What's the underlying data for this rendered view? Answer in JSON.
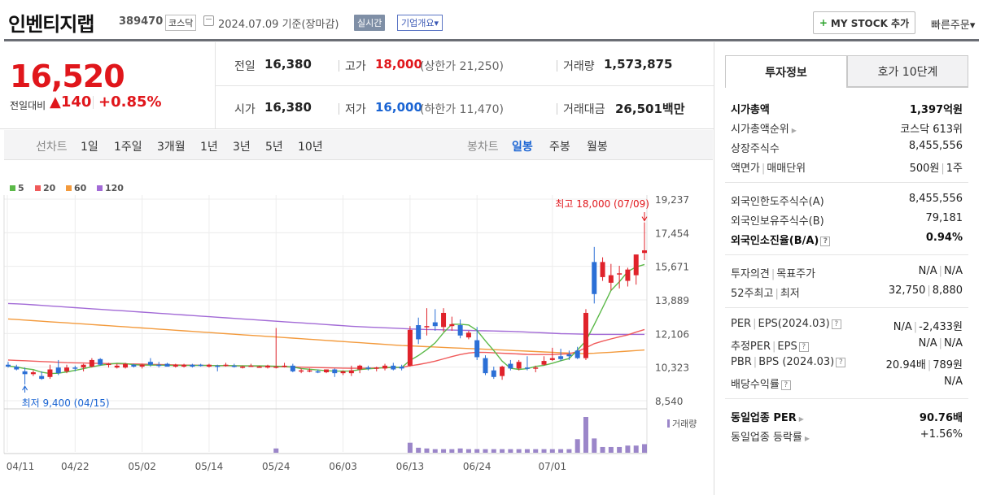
{
  "header": {
    "name": "인벤티지랩",
    "code": "389470",
    "market": "코스닥",
    "date": "2024.07.09 기준(장마감)",
    "realtime": "실시간",
    "overview": "기업개요▾",
    "mystock_label": "MY STOCK 추가",
    "quick_order": "빠른주문▾"
  },
  "price": {
    "current": "16,520",
    "change_label": "전일대비",
    "change": "▲140",
    "change_pct": "+0.85%"
  },
  "summary": {
    "prev_label": "전일",
    "prev": "16,380",
    "high_label": "고가",
    "high": "18,000",
    "upper_limit": "(상한가 21,250)",
    "volume_label": "거래량",
    "volume": "1,573,875",
    "open_label": "시가",
    "open": "16,380",
    "low_label": "저가",
    "low": "16,000",
    "lower_limit": "(하한가 11,470)",
    "amount_label": "거래대금",
    "amount": "26,501",
    "amount_unit": "백만"
  },
  "periods": {
    "line_label": "선차트",
    "line_items": [
      "1일",
      "1주일",
      "3개월",
      "1년",
      "3년",
      "5년",
      "10년"
    ],
    "candle_label": "봉차트",
    "candle_items": [
      "일봉",
      "주봉",
      "월봉"
    ]
  },
  "chart_data": {
    "type": "candlestick",
    "legend": [
      {
        "name": "5",
        "color": "#5bb948"
      },
      {
        "name": "20",
        "color": "#f05a5a"
      },
      {
        "name": "60",
        "color": "#f39a3c"
      },
      {
        "name": "120",
        "color": "#a26ad6"
      }
    ],
    "y_ticks": [
      "19,237",
      "17,454",
      "15,671",
      "13,889",
      "12,106",
      "10,323",
      "8,540"
    ],
    "ylim": [
      8540,
      19237
    ],
    "x_ticks": [
      "04/11",
      "04/22",
      "05/02",
      "05/14",
      "05/24",
      "06/03",
      "06/13",
      "06/24",
      "07/01"
    ],
    "max_annotation": "최고 18,000 (07/09)",
    "min_annotation": "최저 9,400 (04/15)",
    "volume_label": "거래량",
    "candles": [
      {
        "o": 10450,
        "h": 10600,
        "l": 10300,
        "c": 10350
      },
      {
        "o": 10350,
        "h": 10450,
        "l": 10150,
        "c": 10200
      },
      {
        "o": 10100,
        "h": 10300,
        "l": 9400,
        "c": 9950
      },
      {
        "o": 9950,
        "h": 10150,
        "l": 9850,
        "c": 10050
      },
      {
        "o": 9850,
        "h": 10100,
        "l": 9650,
        "c": 9700
      },
      {
        "o": 9800,
        "h": 10450,
        "l": 9700,
        "c": 10200
      },
      {
        "o": 10300,
        "h": 10700,
        "l": 9900,
        "c": 10000
      },
      {
        "o": 10100,
        "h": 10450,
        "l": 10000,
        "c": 10300
      },
      {
        "o": 10300,
        "h": 10400,
        "l": 10100,
        "c": 10250
      },
      {
        "o": 10300,
        "h": 10500,
        "l": 10100,
        "c": 10450
      },
      {
        "o": 10350,
        "h": 10800,
        "l": 10300,
        "c": 10700
      },
      {
        "o": 10750,
        "h": 10800,
        "l": 10400,
        "c": 10450
      },
      {
        "o": 10450,
        "h": 10550,
        "l": 10300,
        "c": 10500
      },
      {
        "o": 10300,
        "h": 10500,
        "l": 10250,
        "c": 10400
      },
      {
        "o": 10300,
        "h": 10550,
        "l": 10250,
        "c": 10500
      },
      {
        "o": 10450,
        "h": 10500,
        "l": 10300,
        "c": 10350
      },
      {
        "o": 10350,
        "h": 10500,
        "l": 10250,
        "c": 10450
      },
      {
        "o": 10600,
        "h": 10800,
        "l": 10350,
        "c": 10450
      },
      {
        "o": 10450,
        "h": 10600,
        "l": 10300,
        "c": 10400
      },
      {
        "o": 10500,
        "h": 10550,
        "l": 10350,
        "c": 10350
      },
      {
        "o": 10350,
        "h": 10500,
        "l": 10300,
        "c": 10450
      },
      {
        "o": 10350,
        "h": 10500,
        "l": 10300,
        "c": 10450
      },
      {
        "o": 10450,
        "h": 10500,
        "l": 10300,
        "c": 10350
      },
      {
        "o": 10450,
        "h": 10500,
        "l": 10350,
        "c": 10400
      },
      {
        "o": 10350,
        "h": 10500,
        "l": 10300,
        "c": 10450
      },
      {
        "o": 10400,
        "h": 10450,
        "l": 10100,
        "c": 10350
      },
      {
        "o": 10400,
        "h": 10550,
        "l": 10350,
        "c": 10450
      },
      {
        "o": 10400,
        "h": 10500,
        "l": 10300,
        "c": 10350
      },
      {
        "o": 10350,
        "h": 10400,
        "l": 10250,
        "c": 10350
      },
      {
        "o": 10400,
        "h": 10500,
        "l": 10350,
        "c": 10400
      },
      {
        "o": 10350,
        "h": 10400,
        "l": 10300,
        "c": 10350
      },
      {
        "o": 10300,
        "h": 10450,
        "l": 10250,
        "c": 10400
      },
      {
        "o": 10300,
        "h": 12400,
        "l": 10250,
        "c": 10350
      },
      {
        "o": 10350,
        "h": 10550,
        "l": 10300,
        "c": 10400
      },
      {
        "o": 10400,
        "h": 10500,
        "l": 10050,
        "c": 10100
      },
      {
        "o": 10150,
        "h": 10250,
        "l": 10000,
        "c": 10150
      },
      {
        "o": 10100,
        "h": 10250,
        "l": 10050,
        "c": 10150
      },
      {
        "o": 10100,
        "h": 10200,
        "l": 10000,
        "c": 10050
      },
      {
        "o": 10050,
        "h": 10200,
        "l": 10000,
        "c": 10200
      },
      {
        "o": 10200,
        "h": 10250,
        "l": 9800,
        "c": 10000
      },
      {
        "o": 10000,
        "h": 10150,
        "l": 9900,
        "c": 10100
      },
      {
        "o": 10000,
        "h": 10400,
        "l": 9850,
        "c": 10150
      },
      {
        "o": 10200,
        "h": 10450,
        "l": 10000,
        "c": 10400
      },
      {
        "o": 10300,
        "h": 10400,
        "l": 10150,
        "c": 10250
      },
      {
        "o": 10250,
        "h": 10350,
        "l": 10100,
        "c": 10300
      },
      {
        "o": 10250,
        "h": 10500,
        "l": 10150,
        "c": 10400
      },
      {
        "o": 10400,
        "h": 10550,
        "l": 10150,
        "c": 10200
      },
      {
        "o": 10350,
        "h": 10450,
        "l": 10150,
        "c": 10250
      },
      {
        "o": 10400,
        "h": 12500,
        "l": 10350,
        "c": 12300
      },
      {
        "o": 12550,
        "h": 12950,
        "l": 11550,
        "c": 11800
      },
      {
        "o": 12500,
        "h": 13450,
        "l": 12000,
        "c": 12500
      },
      {
        "o": 12700,
        "h": 13400,
        "l": 12250,
        "c": 12500
      },
      {
        "o": 12450,
        "h": 13450,
        "l": 12200,
        "c": 13200
      },
      {
        "o": 12500,
        "h": 13000,
        "l": 12250,
        "c": 12600
      },
      {
        "o": 12550,
        "h": 12850,
        "l": 11850,
        "c": 12000
      },
      {
        "o": 11900,
        "h": 12250,
        "l": 11800,
        "c": 12150
      },
      {
        "o": 11750,
        "h": 12450,
        "l": 10700,
        "c": 10850
      },
      {
        "o": 10800,
        "h": 10950,
        "l": 9900,
        "c": 10000
      },
      {
        "o": 10150,
        "h": 10350,
        "l": 9700,
        "c": 9800
      },
      {
        "o": 9850,
        "h": 10400,
        "l": 9650,
        "c": 10350
      },
      {
        "o": 10500,
        "h": 10700,
        "l": 10150,
        "c": 10250
      },
      {
        "o": 10250,
        "h": 10700,
        "l": 10150,
        "c": 10600
      },
      {
        "o": 10300,
        "h": 10900,
        "l": 10150,
        "c": 10250
      },
      {
        "o": 10250,
        "h": 10400,
        "l": 10050,
        "c": 10300
      },
      {
        "o": 10450,
        "h": 10900,
        "l": 10400,
        "c": 10650
      },
      {
        "o": 10700,
        "h": 11350,
        "l": 10650,
        "c": 10800
      },
      {
        "o": 10900,
        "h": 11300,
        "l": 10650,
        "c": 10750
      },
      {
        "o": 11000,
        "h": 11200,
        "l": 10700,
        "c": 10900
      },
      {
        "o": 11200,
        "h": 11400,
        "l": 10750,
        "c": 10800
      },
      {
        "o": 10800,
        "h": 13400,
        "l": 10700,
        "c": 13200
      },
      {
        "o": 15900,
        "h": 16700,
        "l": 13700,
        "c": 14200
      },
      {
        "o": 15100,
        "h": 16150,
        "l": 14900,
        "c": 15900
      },
      {
        "o": 14800,
        "h": 15800,
        "l": 14400,
        "c": 15200
      },
      {
        "o": 15300,
        "h": 15700,
        "l": 14500,
        "c": 15300
      },
      {
        "o": 14900,
        "h": 15600,
        "l": 14600,
        "c": 15500
      },
      {
        "o": 15200,
        "h": 16300,
        "l": 14700,
        "c": 16300
      },
      {
        "o": 16380,
        "h": 18000,
        "l": 16000,
        "c": 16520
      }
    ],
    "ma5": [
      10380,
      10330,
      10250,
      10190,
      10050,
      9980,
      10000,
      10070,
      10150,
      10240,
      10340,
      10420,
      10480,
      10530,
      10510,
      10450,
      10430,
      10430,
      10430,
      10420,
      10410,
      10410,
      10410,
      10410,
      10410,
      10400,
      10410,
      10400,
      10390,
      10390,
      10390,
      10380,
      10370,
      10360,
      10330,
      10250,
      10210,
      10170,
      10130,
      10110,
      10110,
      10120,
      10190,
      10230,
      10260,
      10300,
      10320,
      10300,
      10680,
      10940,
      11250,
      11610,
      12150,
      12600,
      12600,
      12560,
      12270,
      11720,
      11200,
      10640,
      10260,
      10200,
      10240,
      10360,
      10420,
      10530,
      10660,
      10780,
      11230,
      11720,
      12580,
      13480,
      14390,
      14850,
      15390,
      15640,
      15770
    ],
    "ma20": [
      10700,
      10680,
      10660,
      10640,
      10620,
      10600,
      10580,
      10560,
      10550,
      10540,
      10530,
      10520,
      10510,
      10500,
      10490,
      10490,
      10480,
      10470,
      10460,
      10450,
      10440,
      10430,
      10430,
      10420,
      10410,
      10400,
      10400,
      10390,
      10390,
      10380,
      10370,
      10360,
      10350,
      10340,
      10330,
      10320,
      10310,
      10300,
      10290,
      10280,
      10270,
      10260,
      10260,
      10270,
      10280,
      10290,
      10300,
      10310,
      10390,
      10460,
      10540,
      10640,
      10760,
      10880,
      10990,
      11070,
      11110,
      11100,
      11080,
      11060,
      11040,
      11020,
      11000,
      10990,
      10990,
      10990,
      11010,
      11030,
      11150,
      11350,
      11570,
      11700,
      11820,
      11930,
      12030,
      12180,
      12320
    ],
    "ma60": [
      12880,
      12850,
      12820,
      12790,
      12760,
      12730,
      12700,
      12670,
      12640,
      12610,
      12580,
      12550,
      12520,
      12490,
      12460,
      12430,
      12400,
      12370,
      12340,
      12310,
      12280,
      12250,
      12220,
      12190,
      12160,
      12130,
      12100,
      12070,
      12040,
      12010,
      11980,
      11950,
      11920,
      11890,
      11860,
      11830,
      11800,
      11770,
      11740,
      11710,
      11680,
      11650,
      11620,
      11590,
      11560,
      11530,
      11500,
      11470,
      11450,
      11430,
      11410,
      11390,
      11370,
      11350,
      11330,
      11310,
      11290,
      11270,
      11250,
      11230,
      11210,
      11190,
      11170,
      11150,
      11130,
      11110,
      11090,
      11070,
      11050,
      11040,
      11060,
      11090,
      11110,
      11140,
      11170,
      11200,
      11230
    ],
    "ma120": [
      13700,
      13680,
      13660,
      13630,
      13600,
      13570,
      13540,
      13510,
      13480,
      13450,
      13420,
      13390,
      13360,
      13330,
      13300,
      13270,
      13240,
      13210,
      13180,
      13150,
      13120,
      13090,
      13060,
      13030,
      13000,
      12970,
      12940,
      12910,
      12880,
      12850,
      12820,
      12790,
      12760,
      12730,
      12700,
      12670,
      12640,
      12610,
      12580,
      12550,
      12520,
      12490,
      12470,
      12450,
      12430,
      12410,
      12390,
      12370,
      12350,
      12330,
      12320,
      12310,
      12300,
      12290,
      12280,
      12270,
      12260,
      12250,
      12240,
      12230,
      12220,
      12200,
      12180,
      12160,
      12140,
      12120,
      12100,
      12090,
      12080,
      12070,
      12060,
      12060,
      12060,
      12060,
      12060,
      12060,
      12060
    ],
    "volumes": [
      0,
      0,
      0,
      0,
      0,
      0,
      0,
      0,
      0,
      0,
      0,
      0,
      0,
      0,
      0,
      0,
      0,
      0,
      0,
      0,
      0,
      0,
      0,
      0,
      0,
      0,
      0,
      0,
      0,
      0,
      0,
      0,
      0.12,
      0,
      0,
      0,
      0,
      0,
      0,
      0,
      0,
      0,
      0,
      0,
      0,
      0,
      0,
      0,
      0.28,
      0.14,
      0.12,
      0.1,
      0.1,
      0.1,
      0.12,
      0.1,
      0.1,
      0.1,
      0.1,
      0.1,
      0.1,
      0.1,
      0.1,
      0.1,
      0.1,
      0.1,
      0.1,
      0.1,
      0.38,
      1.0,
      0.4,
      0.16,
      0.16,
      0.16,
      0.2,
      0.2,
      0.24
    ]
  },
  "invest": {
    "tab_active": "투자정보",
    "tab_other": "호가 10단계",
    "market_cap_label": "시가총액",
    "market_cap": "1,397억원",
    "rank_label": "시가총액순위",
    "rank": "코스닥 613위",
    "shares_label": "상장주식수",
    "shares": "8,455,556",
    "par_label": "액면가",
    "unit_label": "매매단위",
    "par": "500원",
    "unit": "1주",
    "foreign_limit_label": "외국인한도주식수(A)",
    "foreign_limit": "8,455,556",
    "foreign_hold_label": "외국인보유주식수(B)",
    "foreign_hold": "79,181",
    "foreign_ratio_label": "외국인소진율(B/A)",
    "foreign_ratio": "0.94%",
    "opinion_label": "투자의견",
    "target_label": "목표주가",
    "opinion": "N/A",
    "target": "N/A",
    "w52_high_label": "52주최고",
    "w52_low_label": "최저",
    "w52_high": "32,750",
    "w52_low": "8,880",
    "per_label": "PER",
    "eps_label": "EPS(2024.03)",
    "per": "N/A",
    "eps": "-2,433원",
    "est_per_label": "추정PER",
    "est_eps_label": "EPS",
    "est_per": "N/A",
    "est_eps": "N/A",
    "pbr_label": "PBR",
    "bps_label": "BPS (2024.03)",
    "pbr": "20.94배",
    "bps": "789원",
    "div_label": "배당수익률",
    "div": "N/A",
    "sector_per_label": "동일업종 PER",
    "sector_per": "90.76배",
    "sector_rate_label": "동일업종 등락률",
    "sector_rate": "+1.56%"
  }
}
